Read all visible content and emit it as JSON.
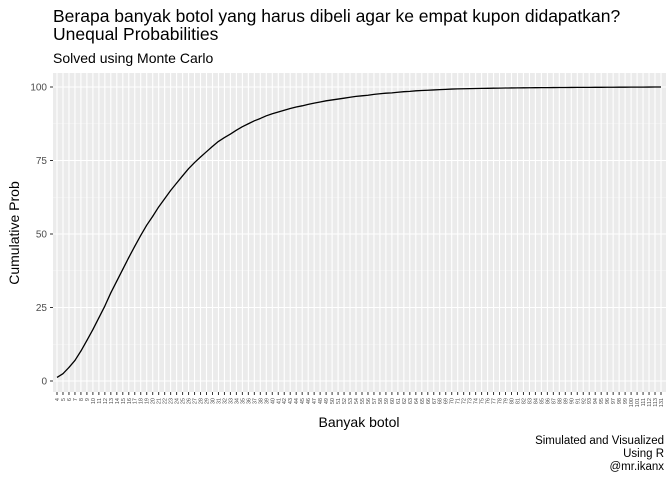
{
  "chart_data": {
    "type": "line",
    "title": "Berapa banyak botol yang harus dibeli agar ke empat kupon didapatkan?",
    "title_line2": "Unequal Probabilities",
    "subtitle": "Solved using Monte Carlo",
    "xlabel": "Banyak botol",
    "ylabel": "Cumulative Prob",
    "caption": [
      "Simulated and Visualized",
      "Using R",
      "@mr.ikanx"
    ],
    "ylim": [
      0,
      100
    ],
    "yticks": [
      0,
      25,
      50,
      75,
      100
    ],
    "x_ticks": [
      "4",
      "5",
      "6",
      "7",
      "8",
      "9",
      "10",
      "11",
      "12",
      "13",
      "14",
      "15",
      "16",
      "17",
      "18",
      "19",
      "20",
      "21",
      "22",
      "23",
      "24",
      "25",
      "26",
      "27",
      "28",
      "29",
      "30",
      "31",
      "32",
      "33",
      "34",
      "35",
      "36",
      "37",
      "38",
      "39",
      "40",
      "41",
      "42",
      "43",
      "44",
      "45",
      "46",
      "47",
      "48",
      "49",
      "50",
      "51",
      "52",
      "53",
      "54",
      "55",
      "56",
      "57",
      "58",
      "59",
      "60",
      "61",
      "62",
      "63",
      "64",
      "65",
      "66",
      "67",
      "68",
      "69",
      "70",
      "71",
      "72",
      "73",
      "74",
      "75",
      "76",
      "77",
      "78",
      "79",
      "80",
      "81",
      "82",
      "83",
      "84",
      "85",
      "86",
      "87",
      "88",
      "89",
      "90",
      "91",
      "92",
      "93",
      "94",
      "95",
      "96",
      "97",
      "98",
      "99",
      "100",
      "101",
      "111",
      "112",
      "113",
      "131"
    ],
    "values": [
      1.2,
      2.5,
      4.6,
      7.0,
      10.2,
      13.8,
      17.5,
      21.5,
      25.5,
      30.0,
      34.0,
      38.0,
      42.0,
      45.8,
      49.5,
      53.0,
      56.0,
      59.2,
      62.0,
      64.8,
      67.3,
      69.8,
      72.2,
      74.3,
      76.2,
      78.0,
      79.8,
      81.5,
      82.8,
      84.0,
      85.3,
      86.5,
      87.5,
      88.5,
      89.3,
      90.2,
      90.9,
      91.5,
      92.1,
      92.7,
      93.2,
      93.6,
      94.1,
      94.5,
      94.9,
      95.3,
      95.6,
      95.9,
      96.2,
      96.5,
      96.8,
      97.0,
      97.2,
      97.5,
      97.7,
      97.9,
      98.0,
      98.2,
      98.4,
      98.5,
      98.7,
      98.8,
      98.9,
      99.0,
      99.1,
      99.2,
      99.3,
      99.35,
      99.4,
      99.45,
      99.5,
      99.52,
      99.55,
      99.6,
      99.62,
      99.65,
      99.68,
      99.7,
      99.72,
      99.74,
      99.76,
      99.78,
      99.8,
      99.81,
      99.82,
      99.84,
      99.85,
      99.86,
      99.87,
      99.88,
      99.89,
      99.9,
      99.91,
      99.92,
      99.93,
      99.94,
      99.95,
      99.96,
      99.97,
      99.98,
      99.99,
      100
    ],
    "grid": true,
    "legend": "none",
    "colors": {
      "panel": "#ebebeb",
      "grid": "#ffffff",
      "line": "#000000",
      "text": "#000000",
      "axis_text": "#4d4d4d"
    }
  }
}
